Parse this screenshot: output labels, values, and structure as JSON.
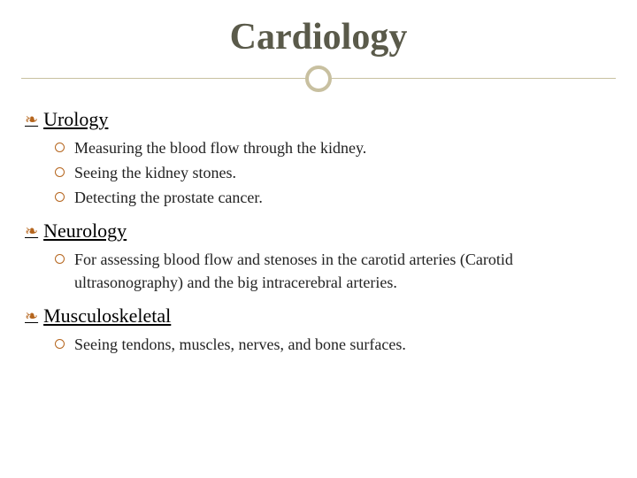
{
  "title": "Cardiology",
  "colors": {
    "title_color": "#5a5a4a",
    "divider_color": "#c8c0a0",
    "bullet_ring_color": "#b5651d",
    "flourish_color": "#b5651d",
    "heading_color": "#000000",
    "body_color": "#222222",
    "background": "#ffffff"
  },
  "typography": {
    "title_fontsize": 42,
    "heading_fontsize": 22,
    "body_fontsize": 18,
    "font_family": "Georgia, serif"
  },
  "sections": [
    {
      "heading": "Urology",
      "items": [
        "Measuring the blood flow through the kidney.",
        "Seeing the kidney stones.",
        "Detecting the prostate cancer."
      ]
    },
    {
      "heading": "Neurology",
      "items": [
        "For assessing blood flow and stenoses in the carotid arteries (Carotid ultrasonography) and the big intracerebral arteries."
      ]
    },
    {
      "heading": "Musculoskeletal",
      "items": [
        "Seeing tendons, muscles, nerves, and bone surfaces."
      ]
    }
  ]
}
